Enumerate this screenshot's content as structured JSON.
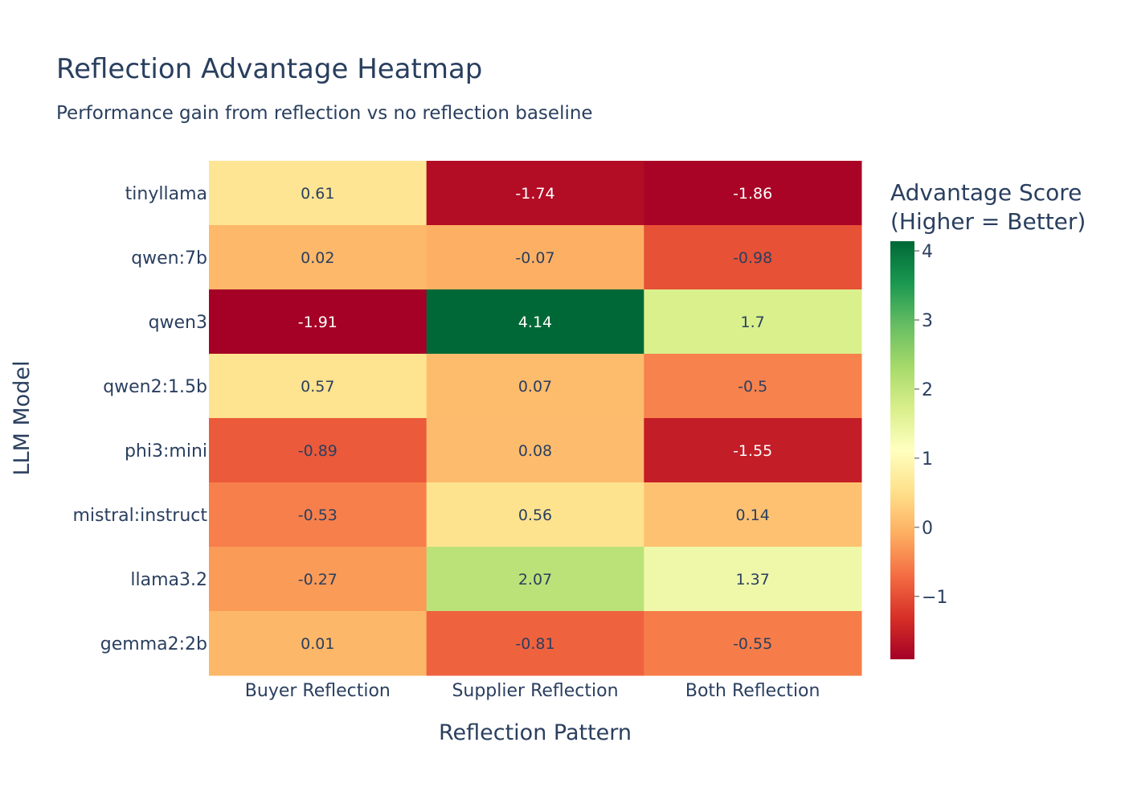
{
  "chart_data": {
    "type": "heatmap",
    "title": "Reflection Advantage Heatmap",
    "subtitle": "Performance gain from reflection vs no reflection baseline",
    "xlabel": "Reflection Pattern",
    "ylabel": "LLM Model",
    "x_categories": [
      "Buyer Reflection",
      "Supplier Reflection",
      "Both Reflection"
    ],
    "y_categories_top_to_bottom": [
      "tinyllama",
      "qwen:7b",
      "qwen3",
      "qwen2:1.5b",
      "phi3:mini",
      "mistral:instruct",
      "llama3.2",
      "gemma2:2b"
    ],
    "values": [
      [
        0.61,
        -1.74,
        -1.86
      ],
      [
        0.02,
        -0.07,
        -0.98
      ],
      [
        -1.91,
        4.14,
        1.7
      ],
      [
        0.57,
        0.07,
        -0.5
      ],
      [
        -0.89,
        0.08,
        -1.55
      ],
      [
        -0.53,
        0.56,
        0.14
      ],
      [
        -0.27,
        2.07,
        1.37
      ],
      [
        0.01,
        -0.81,
        -0.55
      ]
    ],
    "value_labels": [
      [
        "0.61",
        "-1.74",
        "-1.86"
      ],
      [
        "0.02",
        "-0.07",
        "-0.98"
      ],
      [
        "-1.91",
        "4.14",
        "1.7"
      ],
      [
        "0.57",
        "0.07",
        "-0.5"
      ],
      [
        "-0.89",
        "0.08",
        "-1.55"
      ],
      [
        "-0.53",
        "0.56",
        "0.14"
      ],
      [
        "-0.27",
        "2.07",
        "1.37"
      ],
      [
        "0.01",
        "-0.81",
        "-0.55"
      ]
    ],
    "colorscale": "RdYlGn",
    "colorscale_stops": [
      "#a50026",
      "#d73027",
      "#f46d43",
      "#fdae61",
      "#fee08b",
      "#ffffbf",
      "#d9ef8b",
      "#a6d96a",
      "#66bd63",
      "#1a9850",
      "#006837"
    ],
    "zrange": [
      -1.91,
      4.14
    ],
    "colorbar": {
      "title_line1": "Advantage Score",
      "title_line2": "(Higher = Better)",
      "tick_values": [
        -1,
        0,
        1,
        2,
        3,
        4
      ],
      "tick_labels": [
        "−1",
        "0",
        "1",
        "2",
        "3",
        "4"
      ]
    }
  }
}
